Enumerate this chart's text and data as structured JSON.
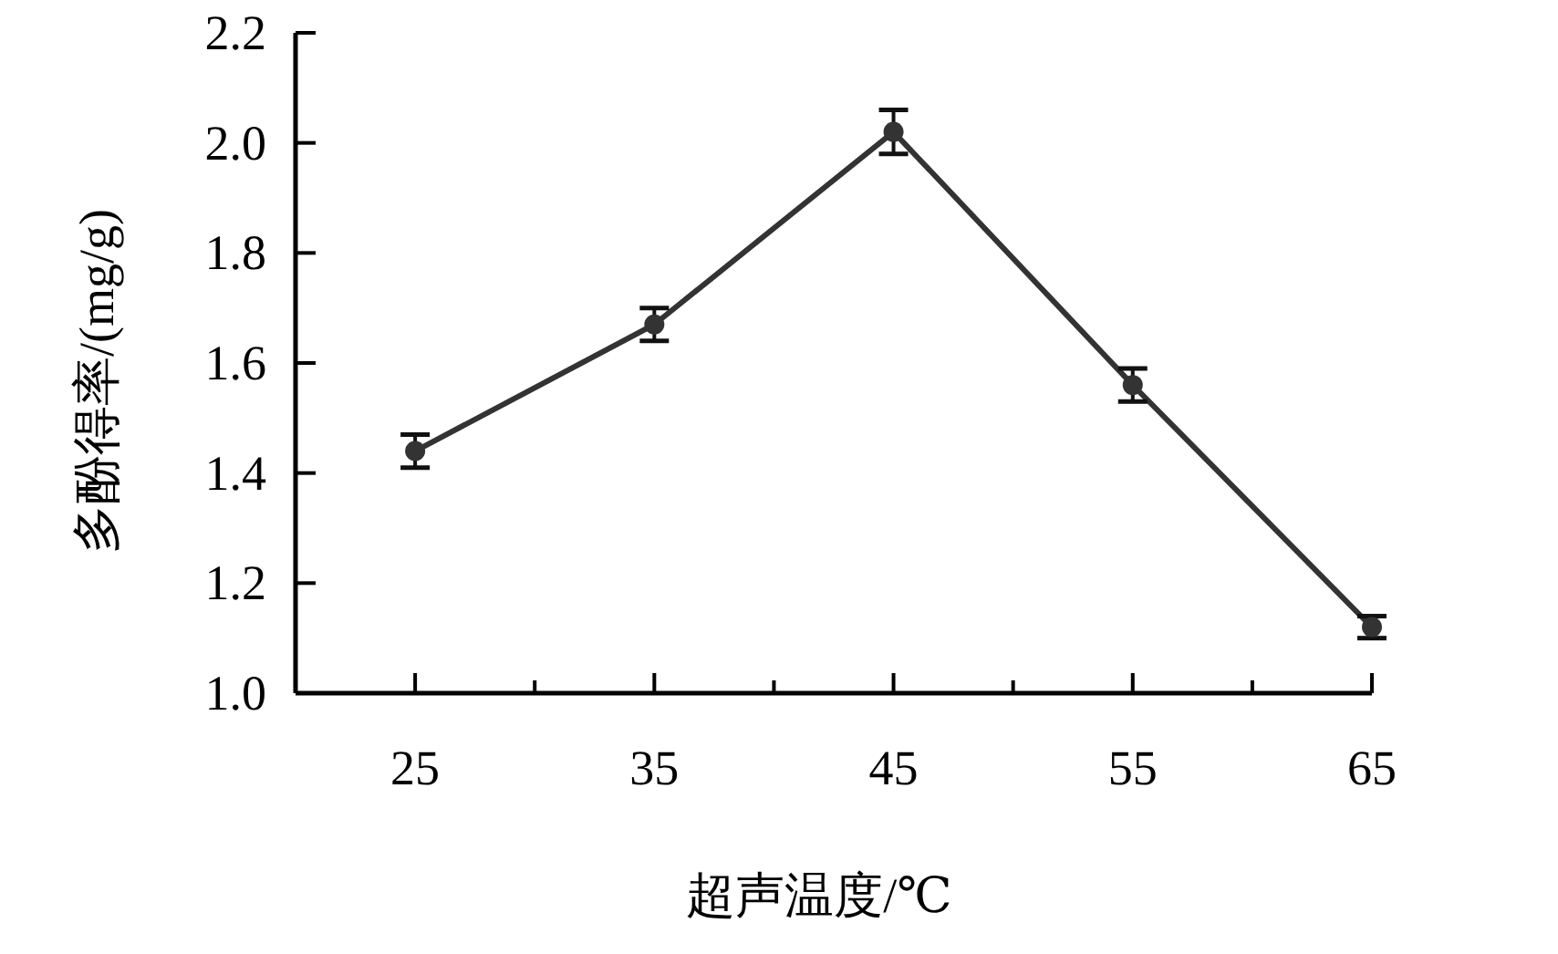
{
  "chart_data": {
    "type": "line",
    "xlabel": "超声温度/℃",
    "ylabel": "多酚得率/(mg/g)",
    "x": [
      25,
      35,
      45,
      55,
      65
    ],
    "series": [
      {
        "color": "#333333",
        "values": [
          1.44,
          1.67,
          2.02,
          1.56,
          1.12
        ],
        "errors": [
          0.03,
          0.03,
          0.04,
          0.03,
          0.02
        ]
      }
    ],
    "xlim": [
      20,
      65
    ],
    "xticks": [
      25,
      {
        "value": 30,
        "label": null
      },
      35,
      {
        "value": 40,
        "label": null
      },
      45,
      {
        "value": 50,
        "label": null
      },
      55,
      {
        "value": 60,
        "label": null
      },
      65
    ],
    "ylim": [
      1.0,
      2.2
    ],
    "yticks": [
      {
        "value": 1.0,
        "label": "1.0"
      },
      1.2,
      1.4,
      1.6,
      1.8,
      {
        "value": 2.0,
        "label": "2.0"
      },
      2.2
    ],
    "marker": "circle",
    "line_style": "solid"
  }
}
